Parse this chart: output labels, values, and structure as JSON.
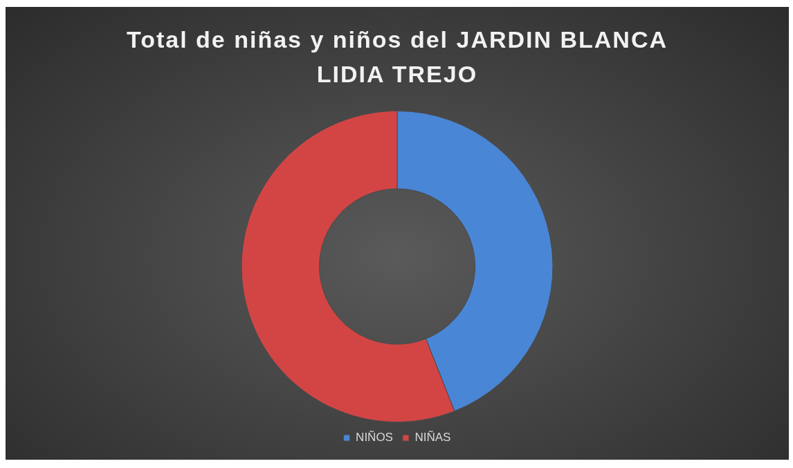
{
  "chart_data": {
    "type": "donut",
    "title": "Total de niñas y niños del JARDIN BLANCA LIDIA TREJO",
    "categories": [
      "NIÑOS",
      "NIÑAS"
    ],
    "values": [
      44,
      56
    ],
    "colors": [
      "#4a86d6",
      "#d34545"
    ],
    "legend": "bottom"
  }
}
